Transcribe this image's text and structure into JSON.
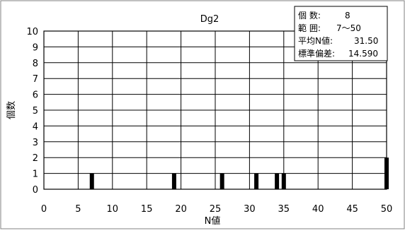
{
  "chart_data": {
    "type": "bar",
    "title": "Dg2",
    "xlabel": "N値",
    "ylabel": "個数",
    "xlim": [
      0,
      50
    ],
    "ylim": [
      0,
      10
    ],
    "x_ticks": [
      0,
      5,
      10,
      15,
      20,
      25,
      30,
      35,
      40,
      45,
      50
    ],
    "y_ticks": [
      0,
      1,
      2,
      3,
      4,
      5,
      6,
      7,
      8,
      9,
      10
    ],
    "grid": true,
    "bars": [
      {
        "x": 7,
        "value": 1
      },
      {
        "x": 19,
        "value": 1
      },
      {
        "x": 26,
        "value": 1
      },
      {
        "x": 31,
        "value": 1
      },
      {
        "x": 34,
        "value": 1
      },
      {
        "x": 35,
        "value": 1
      },
      {
        "x": 50,
        "value": 2
      }
    ],
    "stats": [
      {
        "label": "個 数:",
        "value": "8"
      },
      {
        "label": "範 囲:",
        "value": "7〜50"
      },
      {
        "label": "平均N値:",
        "value": "31.50"
      },
      {
        "label": "標準偏差:",
        "value": "14.590"
      }
    ]
  }
}
